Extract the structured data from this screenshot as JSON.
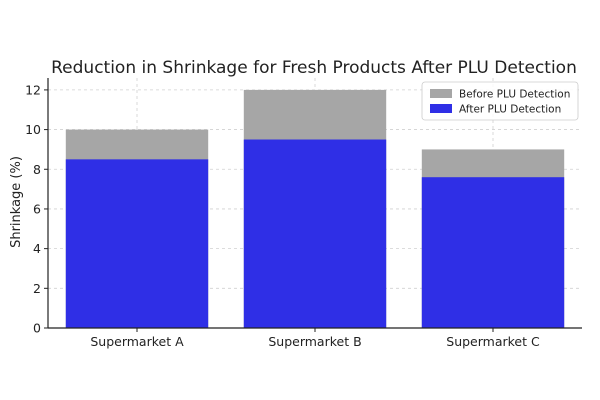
{
  "chart_data": {
    "type": "bar",
    "stacked": false,
    "overlay": true,
    "title": "Reduction in Shrinkage for Fresh Products After PLU Detection",
    "xlabel": "",
    "ylabel": "Shrinkage (%)",
    "ylim": [
      0,
      12.6
    ],
    "yticks": [
      0,
      2,
      4,
      6,
      8,
      10,
      12
    ],
    "categories": [
      "Supermarket A",
      "Supermarket B",
      "Supermarket C"
    ],
    "series": [
      {
        "name": "Before PLU Detection",
        "values": [
          10,
          12,
          9
        ],
        "color": "#a6a6a6"
      },
      {
        "name": "After PLU Detection",
        "values": [
          8.5,
          9.5,
          7.6
        ],
        "color": "#2f2fe6"
      }
    ],
    "grid": true,
    "legend_position": "top-right"
  }
}
